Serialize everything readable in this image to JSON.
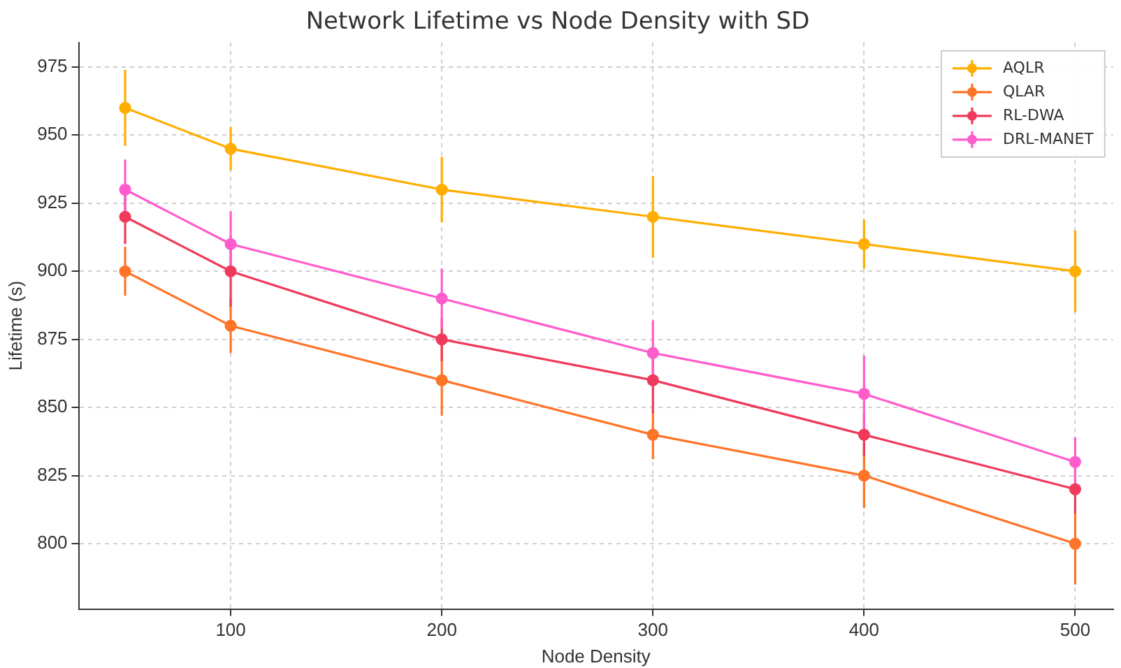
{
  "chart_data": {
    "type": "line",
    "title": "Network Lifetime vs Node Density with SD",
    "xlabel": "Node Density",
    "ylabel": "Lifetime (s)",
    "x": [
      50,
      100,
      200,
      300,
      400,
      500
    ],
    "series": [
      {
        "name": "AQLR",
        "color": "#ffae00",
        "values": [
          960,
          945,
          930,
          920,
          910,
          900
        ],
        "errors": [
          14,
          8,
          12,
          15,
          9,
          15
        ]
      },
      {
        "name": "QLAR",
        "color": "#ff7428",
        "values": [
          900,
          880,
          860,
          840,
          825,
          800
        ],
        "errors": [
          9,
          10,
          13,
          9,
          12,
          15
        ]
      },
      {
        "name": "RL-DWA",
        "color": "#f03a5c",
        "values": [
          920,
          900,
          875,
          860,
          840,
          820
        ],
        "errors": [
          10,
          13,
          8,
          12,
          8,
          9
        ]
      },
      {
        "name": "DRL-MANET",
        "color": "#ff5ccc",
        "values": [
          930,
          910,
          890,
          870,
          855,
          830
        ],
        "errors": [
          11,
          12,
          11,
          12,
          14,
          9
        ]
      }
    ],
    "xlim": [
      28,
      518
    ],
    "xticks": [
      100,
      200,
      300,
      400,
      500
    ],
    "ylim": [
      776,
      984
    ],
    "yticks": [
      800,
      825,
      850,
      875,
      900,
      925,
      950,
      975
    ],
    "grid": true,
    "legend": "top right",
    "marker": "circle",
    "line_style": "solid"
  }
}
